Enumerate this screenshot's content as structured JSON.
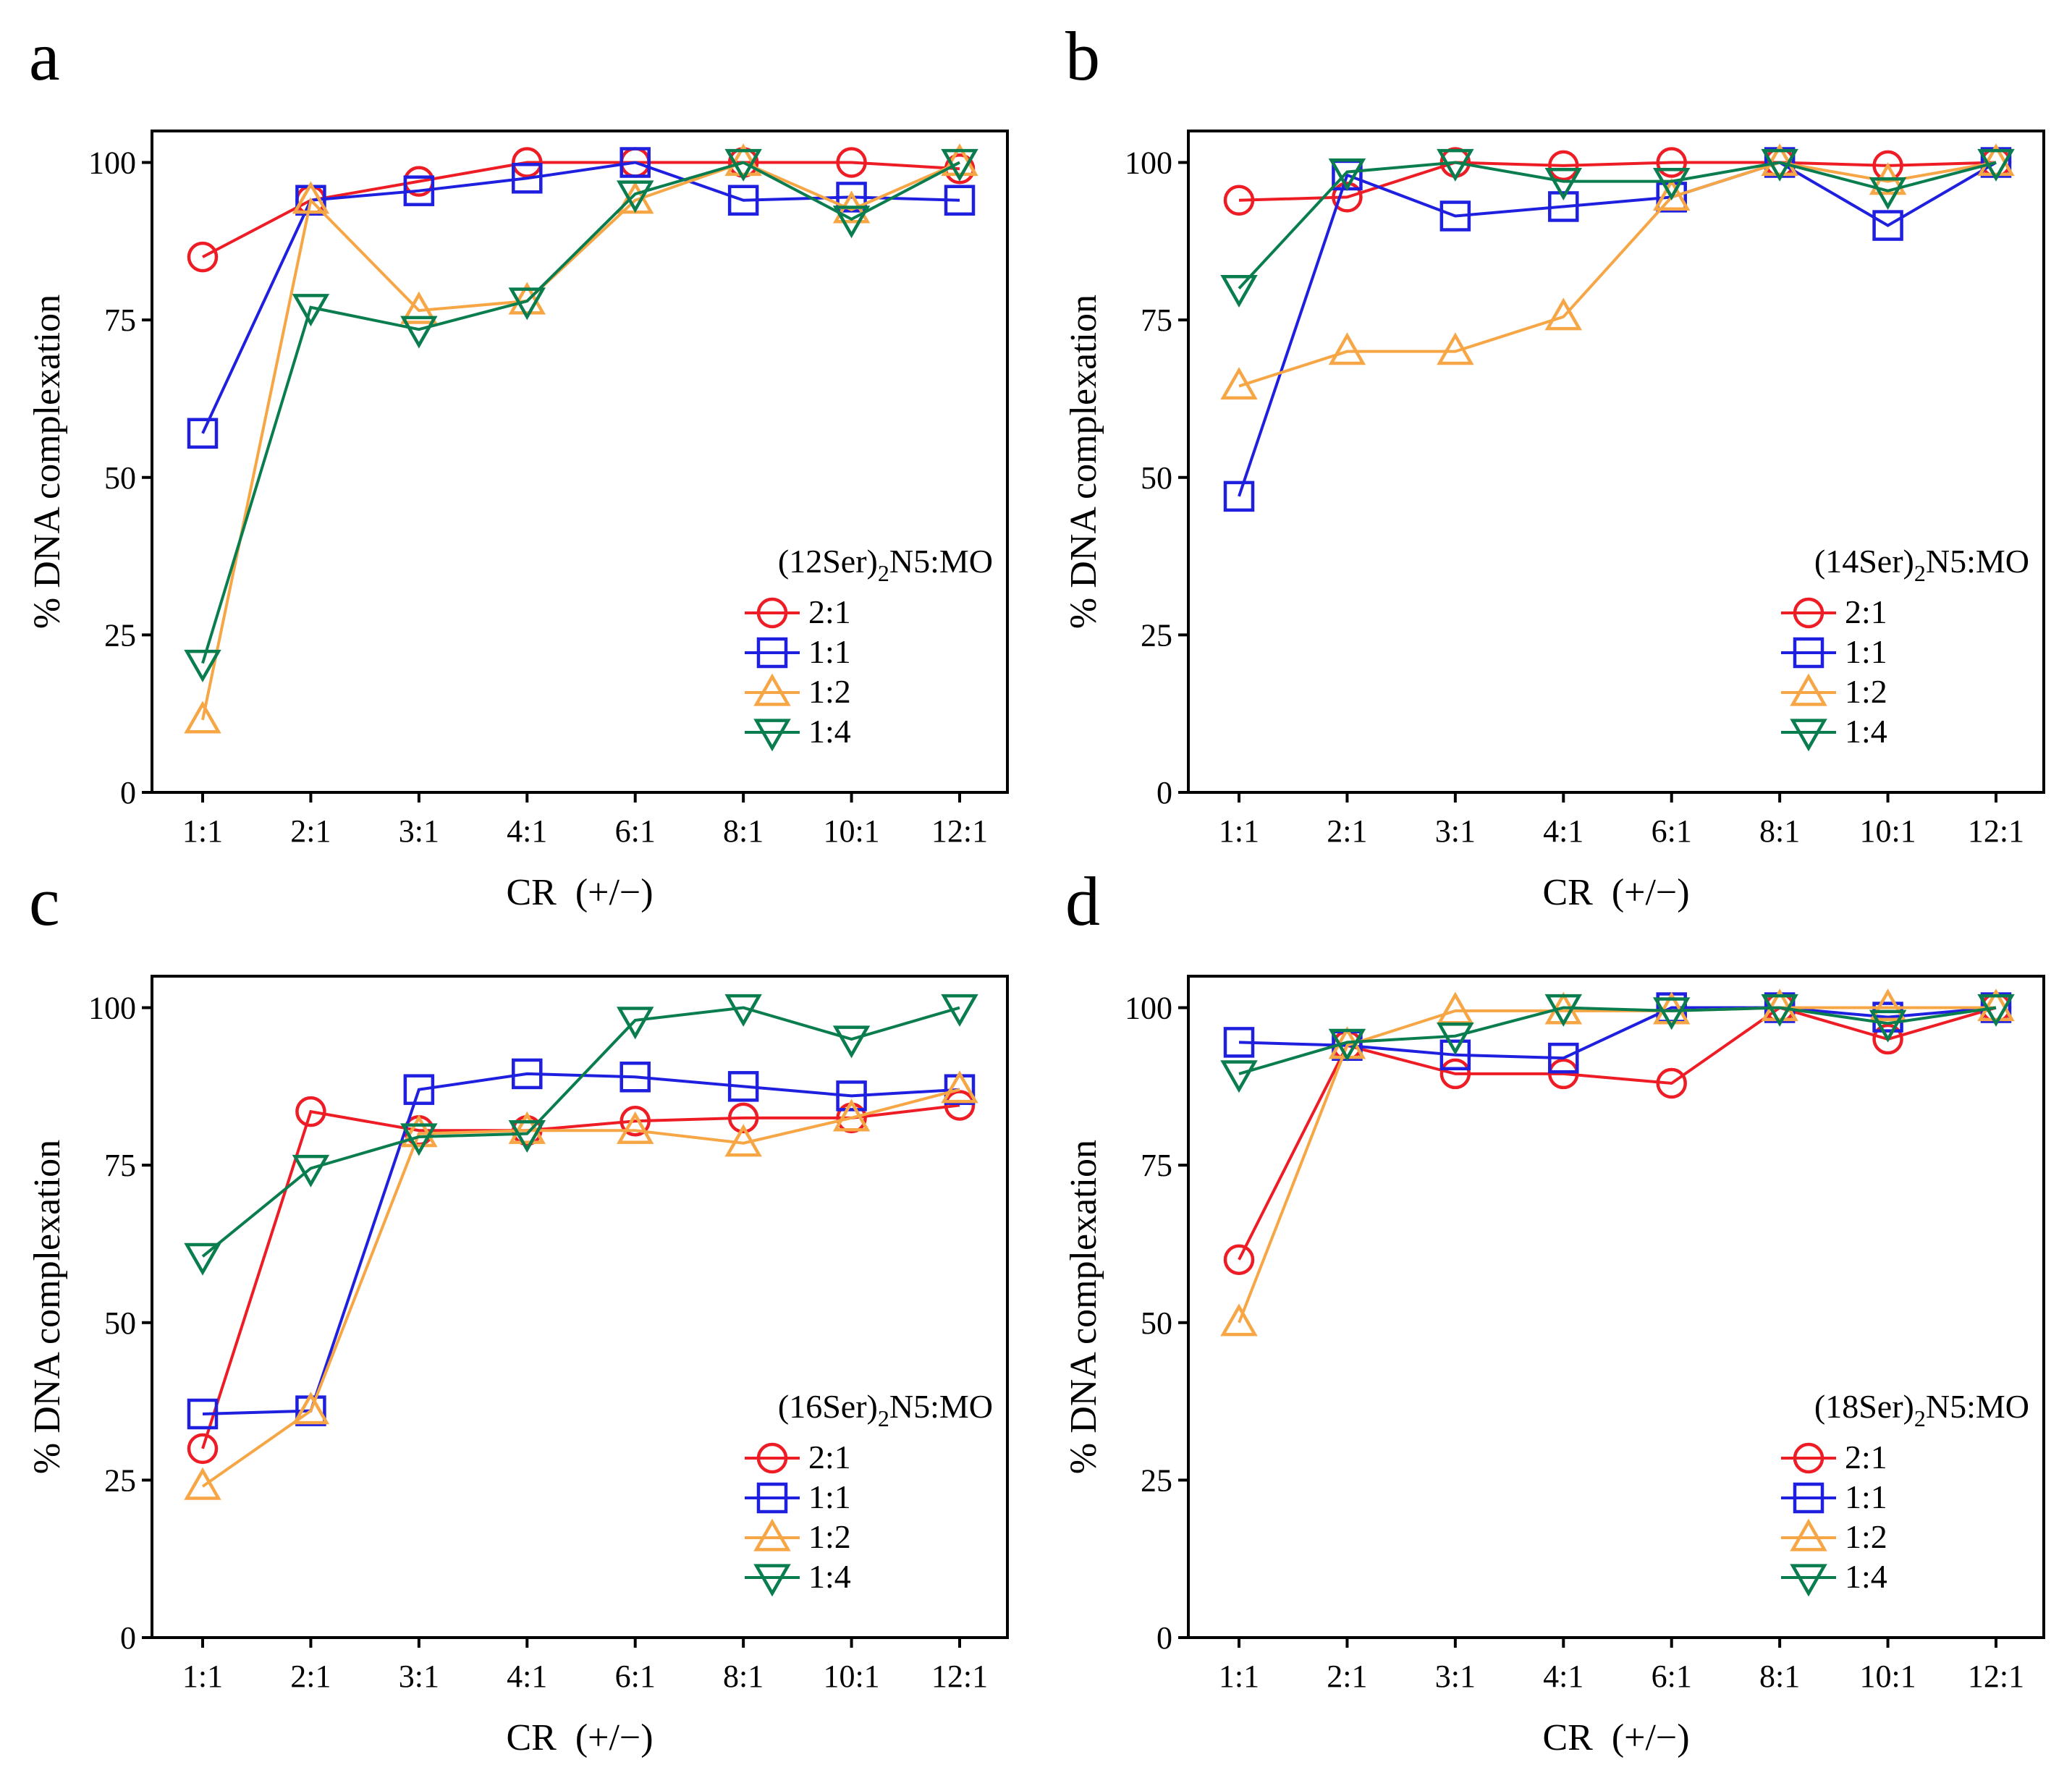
{
  "figure": {
    "series_colors": {
      "2:1": "#ee1c25",
      "1:1": "#1f1fdf",
      "1:2": "#f7a646",
      "1:4": "#0a7d4f"
    },
    "series_markers": {
      "2:1": "circle",
      "1:1": "square",
      "1:2": "triangle-up",
      "1:4": "triangle-down"
    }
  },
  "chart_data": [
    {
      "type": "line",
      "panel": "a",
      "xlabel_main": "CR",
      "xlabel_unit": "(+/−)",
      "ylabel": "% DNA complexation",
      "categories": [
        "1:1",
        "2:1",
        "3:1",
        "4:1",
        "6:1",
        "8:1",
        "10:1",
        "12:1"
      ],
      "yticks": [
        "0",
        "25",
        "50",
        "75",
        "100"
      ],
      "ylim": [
        0,
        105
      ],
      "legend": {
        "title_prefix": "(12Ser)",
        "title_sub": "2",
        "title_suffix": "N5:MO",
        "position": "center-right"
      },
      "series": [
        {
          "name": "2:1",
          "values": [
            85,
            94,
            97,
            100,
            100,
            100,
            100,
            99
          ]
        },
        {
          "name": "1:1",
          "values": [
            57,
            94,
            95.5,
            97.5,
            100,
            94,
            94.5,
            94
          ]
        },
        {
          "name": "1:2",
          "values": [
            11.5,
            94,
            76.5,
            78,
            94,
            100,
            92.5,
            100
          ]
        },
        {
          "name": "1:4",
          "values": [
            20.5,
            77,
            73.5,
            78,
            95,
            100,
            91,
            100
          ]
        }
      ]
    },
    {
      "type": "line",
      "panel": "b",
      "xlabel_main": "CR",
      "xlabel_unit": "(+/−)",
      "ylabel": "% DNA complexation",
      "categories": [
        "1:1",
        "2:1",
        "3:1",
        "4:1",
        "6:1",
        "8:1",
        "10:1",
        "12:1"
      ],
      "yticks": [
        "0",
        "25",
        "50",
        "75",
        "100"
      ],
      "ylim": [
        0,
        105
      ],
      "legend": {
        "title_prefix": "(14Ser)",
        "title_sub": "2",
        "title_suffix": "N5:MO",
        "position": "center-right"
      },
      "series": [
        {
          "name": "2:1",
          "values": [
            94,
            94.5,
            100,
            99.5,
            100,
            100,
            99.5,
            100
          ]
        },
        {
          "name": "1:1",
          "values": [
            47,
            98,
            91.5,
            93,
            94.5,
            100,
            90,
            100
          ]
        },
        {
          "name": "1:2",
          "values": [
            64.5,
            70,
            70,
            75.5,
            94.5,
            100,
            97,
            100
          ]
        },
        {
          "name": "1:4",
          "values": [
            80,
            98.5,
            100,
            97,
            97,
            100,
            95.5,
            100
          ]
        }
      ]
    },
    {
      "type": "line",
      "panel": "c",
      "xlabel_main": "CR",
      "xlabel_unit": "(+/−)",
      "ylabel": "% DNA complexation",
      "categories": [
        "1:1",
        "2:1",
        "3:1",
        "4:1",
        "6:1",
        "8:1",
        "10:1",
        "12:1"
      ],
      "yticks": [
        "0",
        "25",
        "50",
        "75",
        "100"
      ],
      "ylim": [
        0,
        105
      ],
      "legend": {
        "title_prefix": "(16Ser)",
        "title_sub": "2",
        "title_suffix": "N5:MO",
        "position": "center-right"
      },
      "series": [
        {
          "name": "2:1",
          "values": [
            30,
            83.5,
            80.5,
            80.5,
            82,
            82.5,
            82.5,
            84.5
          ]
        },
        {
          "name": "1:1",
          "values": [
            35.5,
            36,
            87,
            89.5,
            89,
            87.5,
            86,
            87
          ]
        },
        {
          "name": "1:2",
          "values": [
            24,
            36,
            80,
            80.5,
            80.5,
            78.5,
            82.5,
            87
          ]
        },
        {
          "name": "1:4",
          "values": [
            60.5,
            74.5,
            79.5,
            80,
            98,
            100,
            95,
            100
          ]
        }
      ]
    },
    {
      "type": "line",
      "panel": "d",
      "xlabel_main": "CR",
      "xlabel_unit": "(+/−)",
      "ylabel": "% DNA complexation",
      "categories": [
        "1:1",
        "2:1",
        "3:1",
        "4:1",
        "6:1",
        "8:1",
        "10:1",
        "12:1"
      ],
      "yticks": [
        "0",
        "25",
        "50",
        "75",
        "100"
      ],
      "ylim": [
        0,
        105
      ],
      "legend": {
        "title_prefix": "(18Ser)",
        "title_sub": "2",
        "title_suffix": "N5:MO",
        "position": "center-right"
      },
      "series": [
        {
          "name": "2:1",
          "values": [
            60,
            94,
            89.5,
            89.5,
            88,
            100,
            95,
            100
          ]
        },
        {
          "name": "1:1",
          "values": [
            94.5,
            94,
            92.5,
            92,
            100,
            100,
            98.5,
            100
          ]
        },
        {
          "name": "1:2",
          "values": [
            50,
            94,
            99.5,
            99.5,
            99.5,
            100,
            100,
            100
          ]
        },
        {
          "name": "1:4",
          "values": [
            89.5,
            94.5,
            95.5,
            100,
            99.5,
            100,
            97.5,
            100
          ]
        }
      ]
    }
  ]
}
